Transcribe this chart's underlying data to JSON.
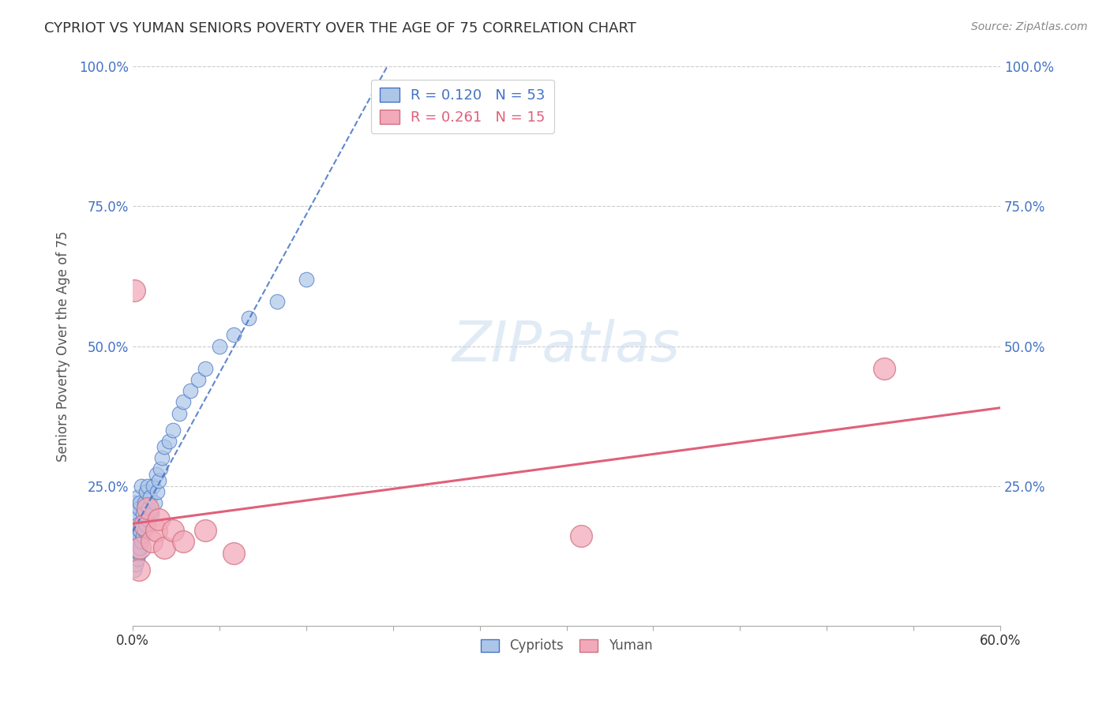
{
  "title": "CYPRIOT VS YUMAN SENIORS POVERTY OVER THE AGE OF 75 CORRELATION CHART",
  "source": "Source: ZipAtlas.com",
  "ylabel": "Seniors Poverty Over the Age of 75",
  "xlim": [
    0.0,
    0.6
  ],
  "ylim": [
    0.0,
    1.0
  ],
  "cypriot_R": 0.12,
  "cypriot_N": 53,
  "yuman_R": 0.261,
  "yuman_N": 15,
  "cypriot_color": "#adc6e8",
  "yuman_color": "#f2aaba",
  "cypriot_line_color": "#4472c4",
  "yuman_line_color": "#e0607a",
  "background_color": "#ffffff",
  "watermark_text": "ZIPatlas",
  "legend_text1": "R = 0.120   N = 53",
  "legend_text2": "R = 0.261   N = 15",
  "bottom_legend": [
    "Cypriots",
    "Yuman"
  ],
  "cypriot_x": [
    0.001,
    0.001,
    0.001,
    0.001,
    0.001,
    0.002,
    0.002,
    0.002,
    0.002,
    0.003,
    0.003,
    0.003,
    0.003,
    0.004,
    0.004,
    0.004,
    0.005,
    0.005,
    0.005,
    0.006,
    0.006,
    0.006,
    0.007,
    0.007,
    0.008,
    0.008,
    0.009,
    0.009,
    0.01,
    0.01,
    0.011,
    0.012,
    0.013,
    0.014,
    0.015,
    0.016,
    0.017,
    0.018,
    0.019,
    0.02,
    0.022,
    0.025,
    0.028,
    0.032,
    0.035,
    0.04,
    0.045,
    0.05,
    0.06,
    0.07,
    0.08,
    0.1,
    0.12
  ],
  "cypriot_y": [
    0.1,
    0.13,
    0.16,
    0.19,
    0.22,
    0.11,
    0.14,
    0.17,
    0.2,
    0.12,
    0.15,
    0.18,
    0.23,
    0.13,
    0.16,
    0.21,
    0.14,
    0.17,
    0.22,
    0.15,
    0.18,
    0.25,
    0.16,
    0.2,
    0.17,
    0.22,
    0.18,
    0.24,
    0.19,
    0.25,
    0.21,
    0.23,
    0.2,
    0.25,
    0.22,
    0.27,
    0.24,
    0.26,
    0.28,
    0.3,
    0.32,
    0.33,
    0.35,
    0.38,
    0.4,
    0.42,
    0.44,
    0.46,
    0.5,
    0.52,
    0.55,
    0.58,
    0.62
  ],
  "yuman_x": [
    0.001,
    0.004,
    0.005,
    0.008,
    0.01,
    0.013,
    0.016,
    0.018,
    0.022,
    0.028,
    0.035,
    0.05,
    0.07,
    0.52,
    0.31
  ],
  "yuman_y": [
    0.6,
    0.1,
    0.14,
    0.18,
    0.21,
    0.15,
    0.17,
    0.19,
    0.14,
    0.17,
    0.15,
    0.17,
    0.13,
    0.46,
    0.16
  ],
  "ytick_vals": [
    0.0,
    0.25,
    0.5,
    0.75,
    1.0
  ],
  "xtick_vals": [
    0.0,
    0.06,
    0.12,
    0.18,
    0.24,
    0.3,
    0.36,
    0.42,
    0.48,
    0.54,
    0.6
  ]
}
